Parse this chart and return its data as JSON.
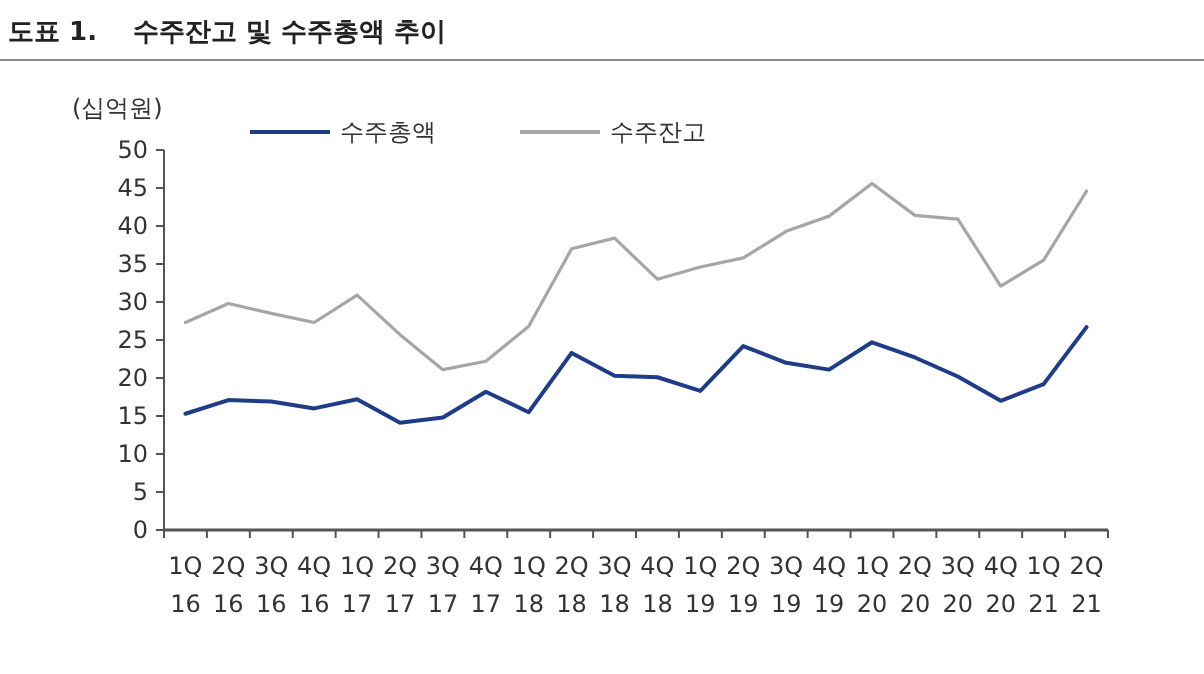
{
  "chart_data": {
    "type": "line",
    "title": "도표 1.    수주잔고 및 수주총액 추이",
    "ylabel": "(십억원)",
    "categories": [
      "1Q\n16",
      "2Q\n16",
      "3Q\n16",
      "4Q\n16",
      "1Q\n17",
      "2Q\n17",
      "3Q\n17",
      "4Q\n17",
      "1Q\n18",
      "2Q\n18",
      "3Q\n18",
      "4Q\n18",
      "1Q\n19",
      "2Q\n19",
      "3Q\n19",
      "4Q\n19",
      "1Q\n20",
      "2Q\n20",
      "3Q\n20",
      "4Q\n20",
      "1Q\n21",
      "2Q\n21"
    ],
    "series": [
      {
        "name": "수주총액",
        "color": "#1f3c88",
        "values": [
          15.3,
          17.1,
          16.9,
          16.0,
          17.2,
          14.1,
          14.8,
          18.2,
          15.5,
          23.3,
          20.3,
          20.1,
          18.3,
          24.2,
          22.0,
          21.1,
          24.7,
          22.7,
          20.2,
          17.0,
          19.2,
          26.7
        ]
      },
      {
        "name": "수주잔고",
        "color": "#a6a6a6",
        "values": [
          27.3,
          29.8,
          28.5,
          27.3,
          30.9,
          25.7,
          21.1,
          22.2,
          26.8,
          37.0,
          38.4,
          33.0,
          34.6,
          35.8,
          39.3,
          41.3,
          45.6,
          41.4,
          40.9,
          32.1,
          35.5,
          44.6
        ]
      }
    ],
    "ylim": [
      0,
      50
    ],
    "yticks": [
      0,
      5,
      10,
      15,
      20,
      25,
      30,
      35,
      40,
      45,
      50
    ],
    "grid": false,
    "legend": "top",
    "line_style": "solid"
  }
}
